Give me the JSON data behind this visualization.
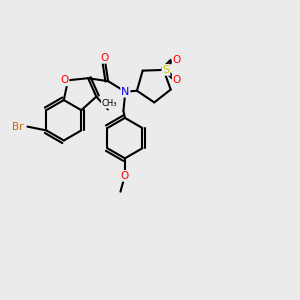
{
  "bg_color": "#ebebeb",
  "bond_color": "#000000",
  "atom_colors": {
    "Br": "#cc6600",
    "O": "#ff0000",
    "N": "#0000ff",
    "S": "#cccc00"
  },
  "figsize": [
    3.0,
    3.0
  ],
  "dpi": 100
}
